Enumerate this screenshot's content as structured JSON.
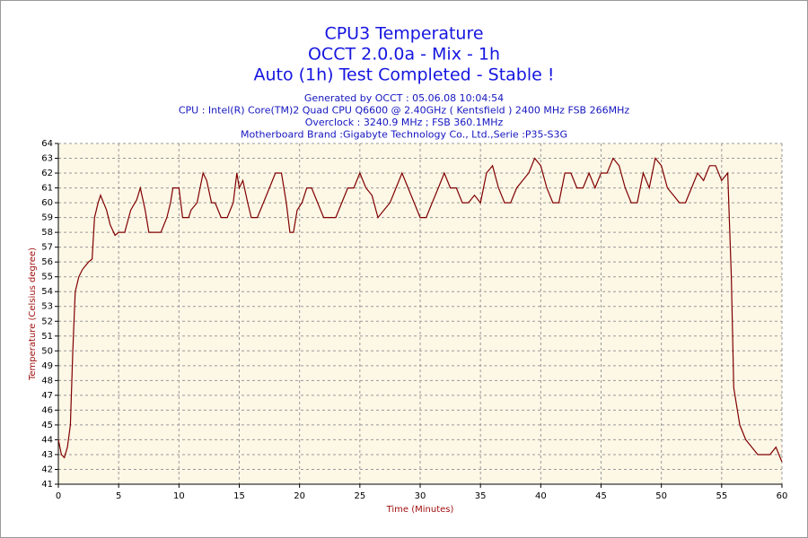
{
  "chart_data": {
    "type": "line",
    "title": [
      "CPU3 Temperature",
      "OCCT 2.0.0a - Mix - 1h",
      "Auto (1h) Test Completed - Stable !"
    ],
    "subtitle": [
      "Generated by OCCT : 05.06.08 10:04:54",
      "CPU : Intel(R) Core(TM)2 Quad CPU Q6600 @ 2.40GHz ( Kentsfield ) 2400 MHz FSB 266MHz",
      "Overclock : 3240.9 MHz ; FSB 360.1MHz",
      "Motherboard Brand :Gigabyte Technology Co., Ltd.,Serie :P35-S3G"
    ],
    "x_label": "Time (Minutes)",
    "y_label": "Temperature (Celsius degree)",
    "x": [
      0,
      0.25,
      0.5,
      0.75,
      1,
      1.2,
      1.4,
      1.7,
      2,
      2.5,
      2.8,
      3,
      3.3,
      3.5,
      4,
      4.3,
      4.7,
      5,
      5.5,
      6,
      6.5,
      6.8,
      7.2,
      7.5,
      8,
      8.5,
      9,
      9.3,
      9.5,
      10,
      10.3,
      10.8,
      11,
      11.5,
      12,
      12.3,
      12.7,
      13,
      13.5,
      14,
      14.5,
      14.8,
      15,
      15.3,
      15.7,
      16,
      16.5,
      17,
      17.5,
      18,
      18.5,
      18.9,
      19.2,
      19.5,
      19.8,
      20.2,
      20.6,
      21,
      21.5,
      22,
      23,
      23.5,
      24,
      24.5,
      25,
      25.5,
      26,
      26.5,
      27,
      27.5,
      28,
      28.5,
      29,
      29.5,
      30,
      30.5,
      31,
      31.5,
      32,
      32.5,
      33,
      33.5,
      34,
      34.5,
      35,
      35.5,
      36,
      36.5,
      37,
      37.5,
      38,
      38.5,
      39,
      39.5,
      40,
      40.5,
      41,
      41.5,
      42,
      42.5,
      43,
      43.5,
      44,
      44.5,
      45,
      45.5,
      46,
      46.5,
      47,
      47.5,
      48,
      48.5,
      49,
      49.5,
      50,
      50.5,
      51,
      51.5,
      52,
      52.5,
      53,
      53.5,
      54,
      54.5,
      55,
      55.5,
      55.8,
      56,
      56.5,
      57,
      57.5,
      58,
      58.5,
      59,
      59.5,
      60
    ],
    "series": [
      {
        "name": "CPU3",
        "color": "#800000",
        "values": [
          44,
          43,
          42.8,
          43.5,
          45,
          50,
          54,
          55,
          55.5,
          56,
          56.2,
          59,
          60,
          60.5,
          59.5,
          58.5,
          57.8,
          58,
          58,
          59.5,
          60.2,
          61,
          59.5,
          58,
          58,
          58,
          59,
          60,
          61,
          61,
          59,
          59,
          59.5,
          60,
          62,
          61.5,
          60,
          60,
          59,
          59,
          60,
          62,
          61,
          61.5,
          60,
          59,
          59,
          60,
          61,
          62,
          62,
          60,
          58,
          58,
          59.5,
          60,
          61,
          61,
          60,
          59,
          59,
          60,
          61,
          61,
          62,
          61,
          60.5,
          59,
          59.5,
          60,
          61,
          62,
          61,
          60,
          59,
          59,
          60,
          61,
          62,
          61,
          61,
          60,
          60,
          60.5,
          60,
          62,
          62.5,
          61,
          60,
          60,
          61,
          61.5,
          62,
          63,
          62.5,
          61,
          60,
          60,
          62,
          62,
          61,
          61,
          62,
          61,
          62,
          62,
          63,
          62.5,
          61,
          60,
          60,
          62,
          61,
          63,
          62.5,
          61,
          60.5,
          60,
          60,
          61,
          62,
          61.5,
          62.5,
          62.5,
          61.5,
          62,
          55,
          47.5,
          45,
          44,
          43.5,
          43,
          43,
          43,
          43.5,
          42.5
        ]
      }
    ],
    "xlim": [
      0,
      60
    ],
    "xticks": [
      0,
      5,
      10,
      15,
      20,
      25,
      30,
      35,
      40,
      45,
      50,
      55,
      60
    ],
    "ylim": [
      41,
      64
    ],
    "yticks": [
      41,
      42,
      43,
      44,
      45,
      46,
      47,
      48,
      49,
      50,
      51,
      52,
      53,
      54,
      55,
      56,
      57,
      58,
      59,
      60,
      61,
      62,
      63,
      64
    ],
    "grid": true
  }
}
